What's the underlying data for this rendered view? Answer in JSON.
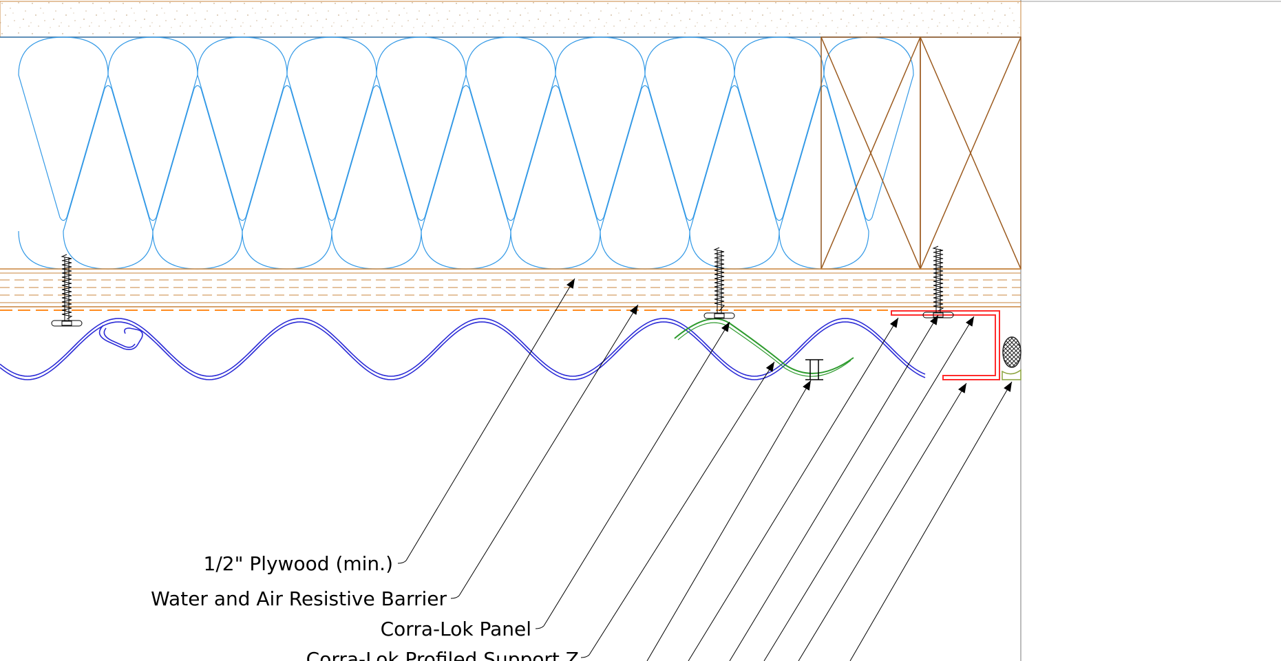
{
  "labels": {
    "plywood": "1/2\" Plywood (min.)",
    "barrier": "Water and Air Resistive Barrier",
    "panel": "Corra-Lok Panel",
    "support": "Corra-Lok Profiled Support Z"
  },
  "colors": {
    "insulation": "#3399e6",
    "stud": "#9b5a1e",
    "sheathing": "#c8843c",
    "barrier": "#ff8a1e",
    "panel": "#2b2bd6",
    "support": "#2e9b2e",
    "trim": "#ff2a2a",
    "sealant": "#8aa23c",
    "leader": "#000000",
    "border": "#7a7a7a"
  }
}
